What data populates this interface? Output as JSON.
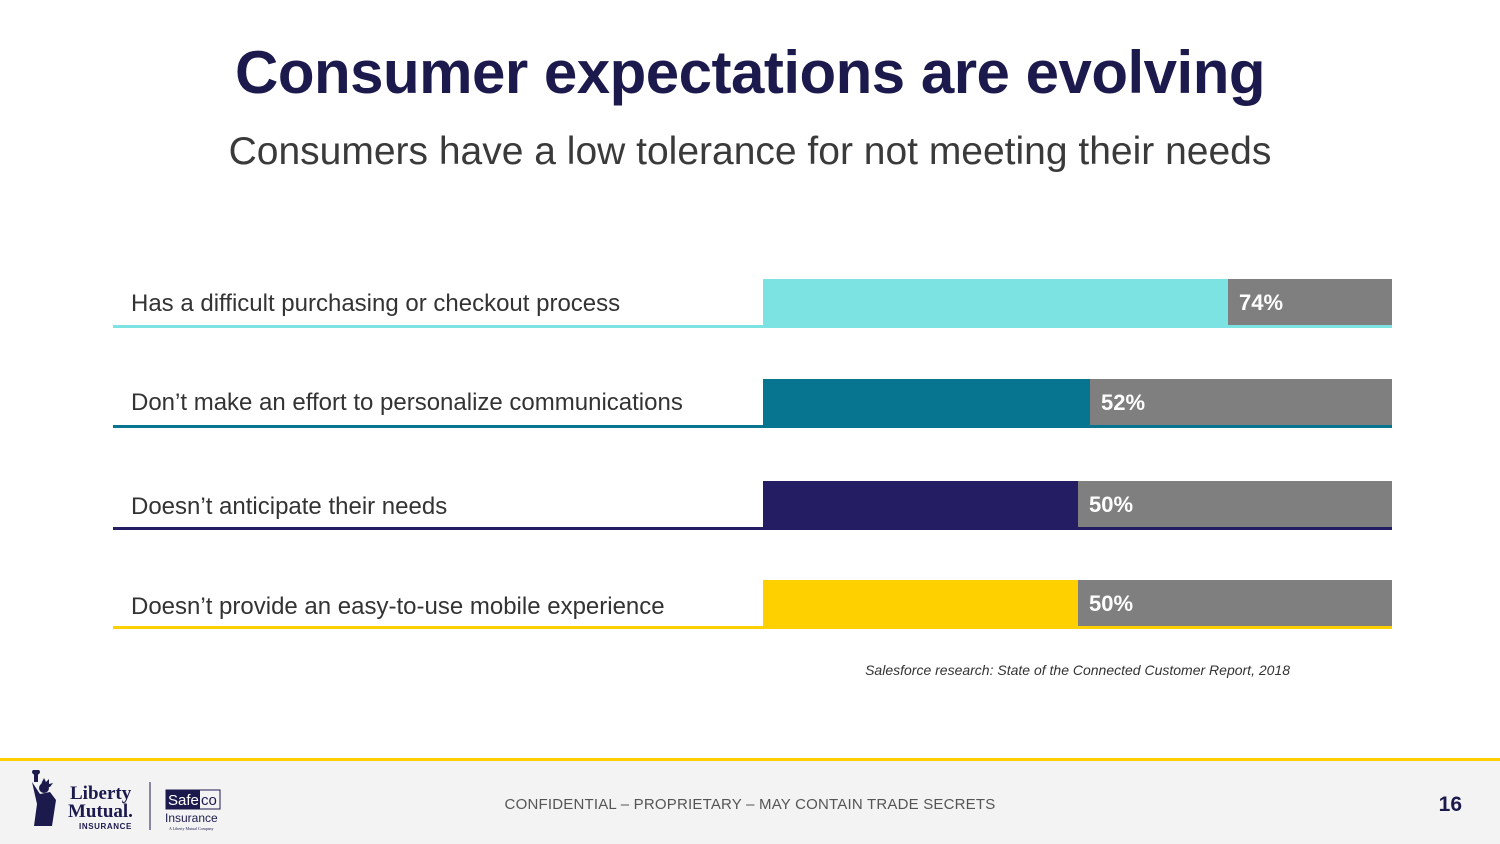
{
  "slide": {
    "title": "Consumer expectations are evolving",
    "subtitle": "Consumers have a low tolerance for not meeting their needs",
    "source": "Salesforce research: State of the Connected Customer Report, 2018"
  },
  "chart_data": {
    "type": "bar",
    "orientation": "horizontal",
    "title": "",
    "categories": [
      "Has a difficult purchasing or checkout process",
      "Don’t make an effort to personalize communications",
      "Doesn’t anticipate their needs",
      "Doesn’t provide an easy-to-use mobile experience"
    ],
    "values": [
      74,
      52,
      50,
      50
    ],
    "value_labels": [
      "74%",
      "52%",
      "50%",
      "50%"
    ],
    "colors": [
      "#7ce3e2",
      "#087590",
      "#251d63",
      "#ffd000"
    ],
    "track_color": "#7f7f7f",
    "xlim": [
      0,
      100
    ],
    "unit": "%"
  },
  "footer": {
    "confidential": "CONFIDENTIAL – PROPRIETARY – MAY CONTAIN TRADE SECRETS",
    "page_number": "16"
  },
  "logos": {
    "liberty_line1": "Liberty",
    "liberty_line2": "Mutual.",
    "liberty_insurance": "INSURANCE",
    "safeco_a": "Safe",
    "safeco_b": "co",
    "safeco_insurance": "Insurance",
    "safeco_tagline": "A Liberty Mutual Company"
  }
}
